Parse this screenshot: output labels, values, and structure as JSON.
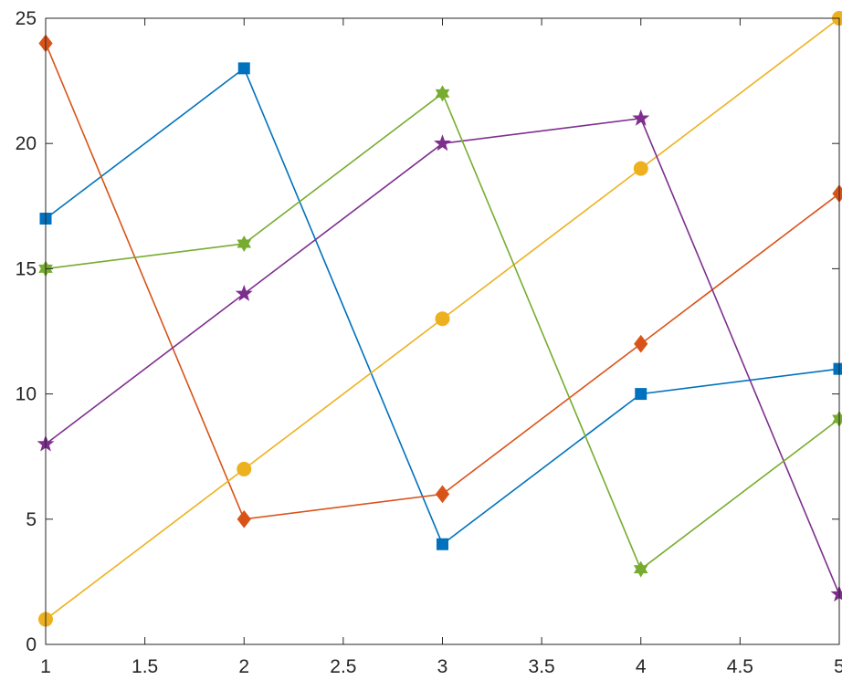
{
  "chart_data": {
    "type": "line",
    "title": "",
    "xlabel": "",
    "ylabel": "",
    "x": [
      1,
      2,
      3,
      4,
      5
    ],
    "xlim": [
      1,
      5
    ],
    "ylim": [
      0,
      25
    ],
    "xticks": [
      "1",
      "1.5",
      "2",
      "2.5",
      "3",
      "3.5",
      "4",
      "4.5",
      "5"
    ],
    "yticks": [
      "0",
      "5",
      "10",
      "15",
      "20",
      "25"
    ],
    "grid": false,
    "legend": "none",
    "series": [
      {
        "color": "#0072BD",
        "marker": "square",
        "values": [
          17,
          23,
          4,
          10,
          11
        ]
      },
      {
        "color": "#D95319",
        "marker": "diamond",
        "values": [
          24,
          5,
          6,
          12,
          18
        ]
      },
      {
        "color": "#EDB120",
        "marker": "circle",
        "values": [
          1,
          7,
          13,
          19,
          25
        ]
      },
      {
        "color": "#7E2F8E",
        "marker": "pentagram",
        "values": [
          8,
          14,
          20,
          21,
          2
        ]
      },
      {
        "color": "#77AC30",
        "marker": "hexagram",
        "values": [
          15,
          16,
          22,
          3,
          9
        ]
      }
    ]
  }
}
